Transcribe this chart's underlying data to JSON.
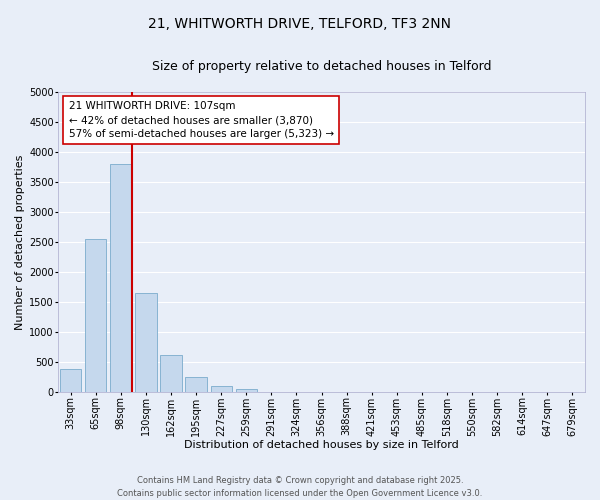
{
  "title": "21, WHITWORTH DRIVE, TELFORD, TF3 2NN",
  "subtitle": "Size of property relative to detached houses in Telford",
  "xlabel": "Distribution of detached houses by size in Telford",
  "ylabel": "Number of detached properties",
  "bin_labels": [
    "33sqm",
    "65sqm",
    "98sqm",
    "130sqm",
    "162sqm",
    "195sqm",
    "227sqm",
    "259sqm",
    "291sqm",
    "324sqm",
    "356sqm",
    "388sqm",
    "421sqm",
    "453sqm",
    "485sqm",
    "518sqm",
    "550sqm",
    "582sqm",
    "614sqm",
    "647sqm",
    "679sqm"
  ],
  "bar_values": [
    390,
    2550,
    3800,
    1650,
    620,
    250,
    105,
    55,
    0,
    0,
    0,
    0,
    0,
    0,
    0,
    0,
    0,
    0,
    0,
    0,
    0
  ],
  "bar_color": "#c5d8ed",
  "bar_edge_color": "#7aaccc",
  "vline_color": "#cc0000",
  "vline_pos": 2.45,
  "ylim": [
    0,
    5000
  ],
  "yticks": [
    0,
    500,
    1000,
    1500,
    2000,
    2500,
    3000,
    3500,
    4000,
    4500,
    5000
  ],
  "annotation_title": "21 WHITWORTH DRIVE: 107sqm",
  "annotation_line1": "← 42% of detached houses are smaller (3,870)",
  "annotation_line2": "57% of semi-detached houses are larger (5,323) →",
  "annotation_box_color": "#ffffff",
  "annotation_box_edge": "#cc0000",
  "footer1": "Contains HM Land Registry data © Crown copyright and database right 2025.",
  "footer2": "Contains public sector information licensed under the Open Government Licence v3.0.",
  "background_color": "#e8eef8",
  "grid_color": "#ffffff",
  "title_fontsize": 10,
  "subtitle_fontsize": 9,
  "axis_label_fontsize": 8,
  "tick_fontsize": 7,
  "annotation_title_fontsize": 8,
  "annotation_body_fontsize": 7.5,
  "footer_fontsize": 6
}
